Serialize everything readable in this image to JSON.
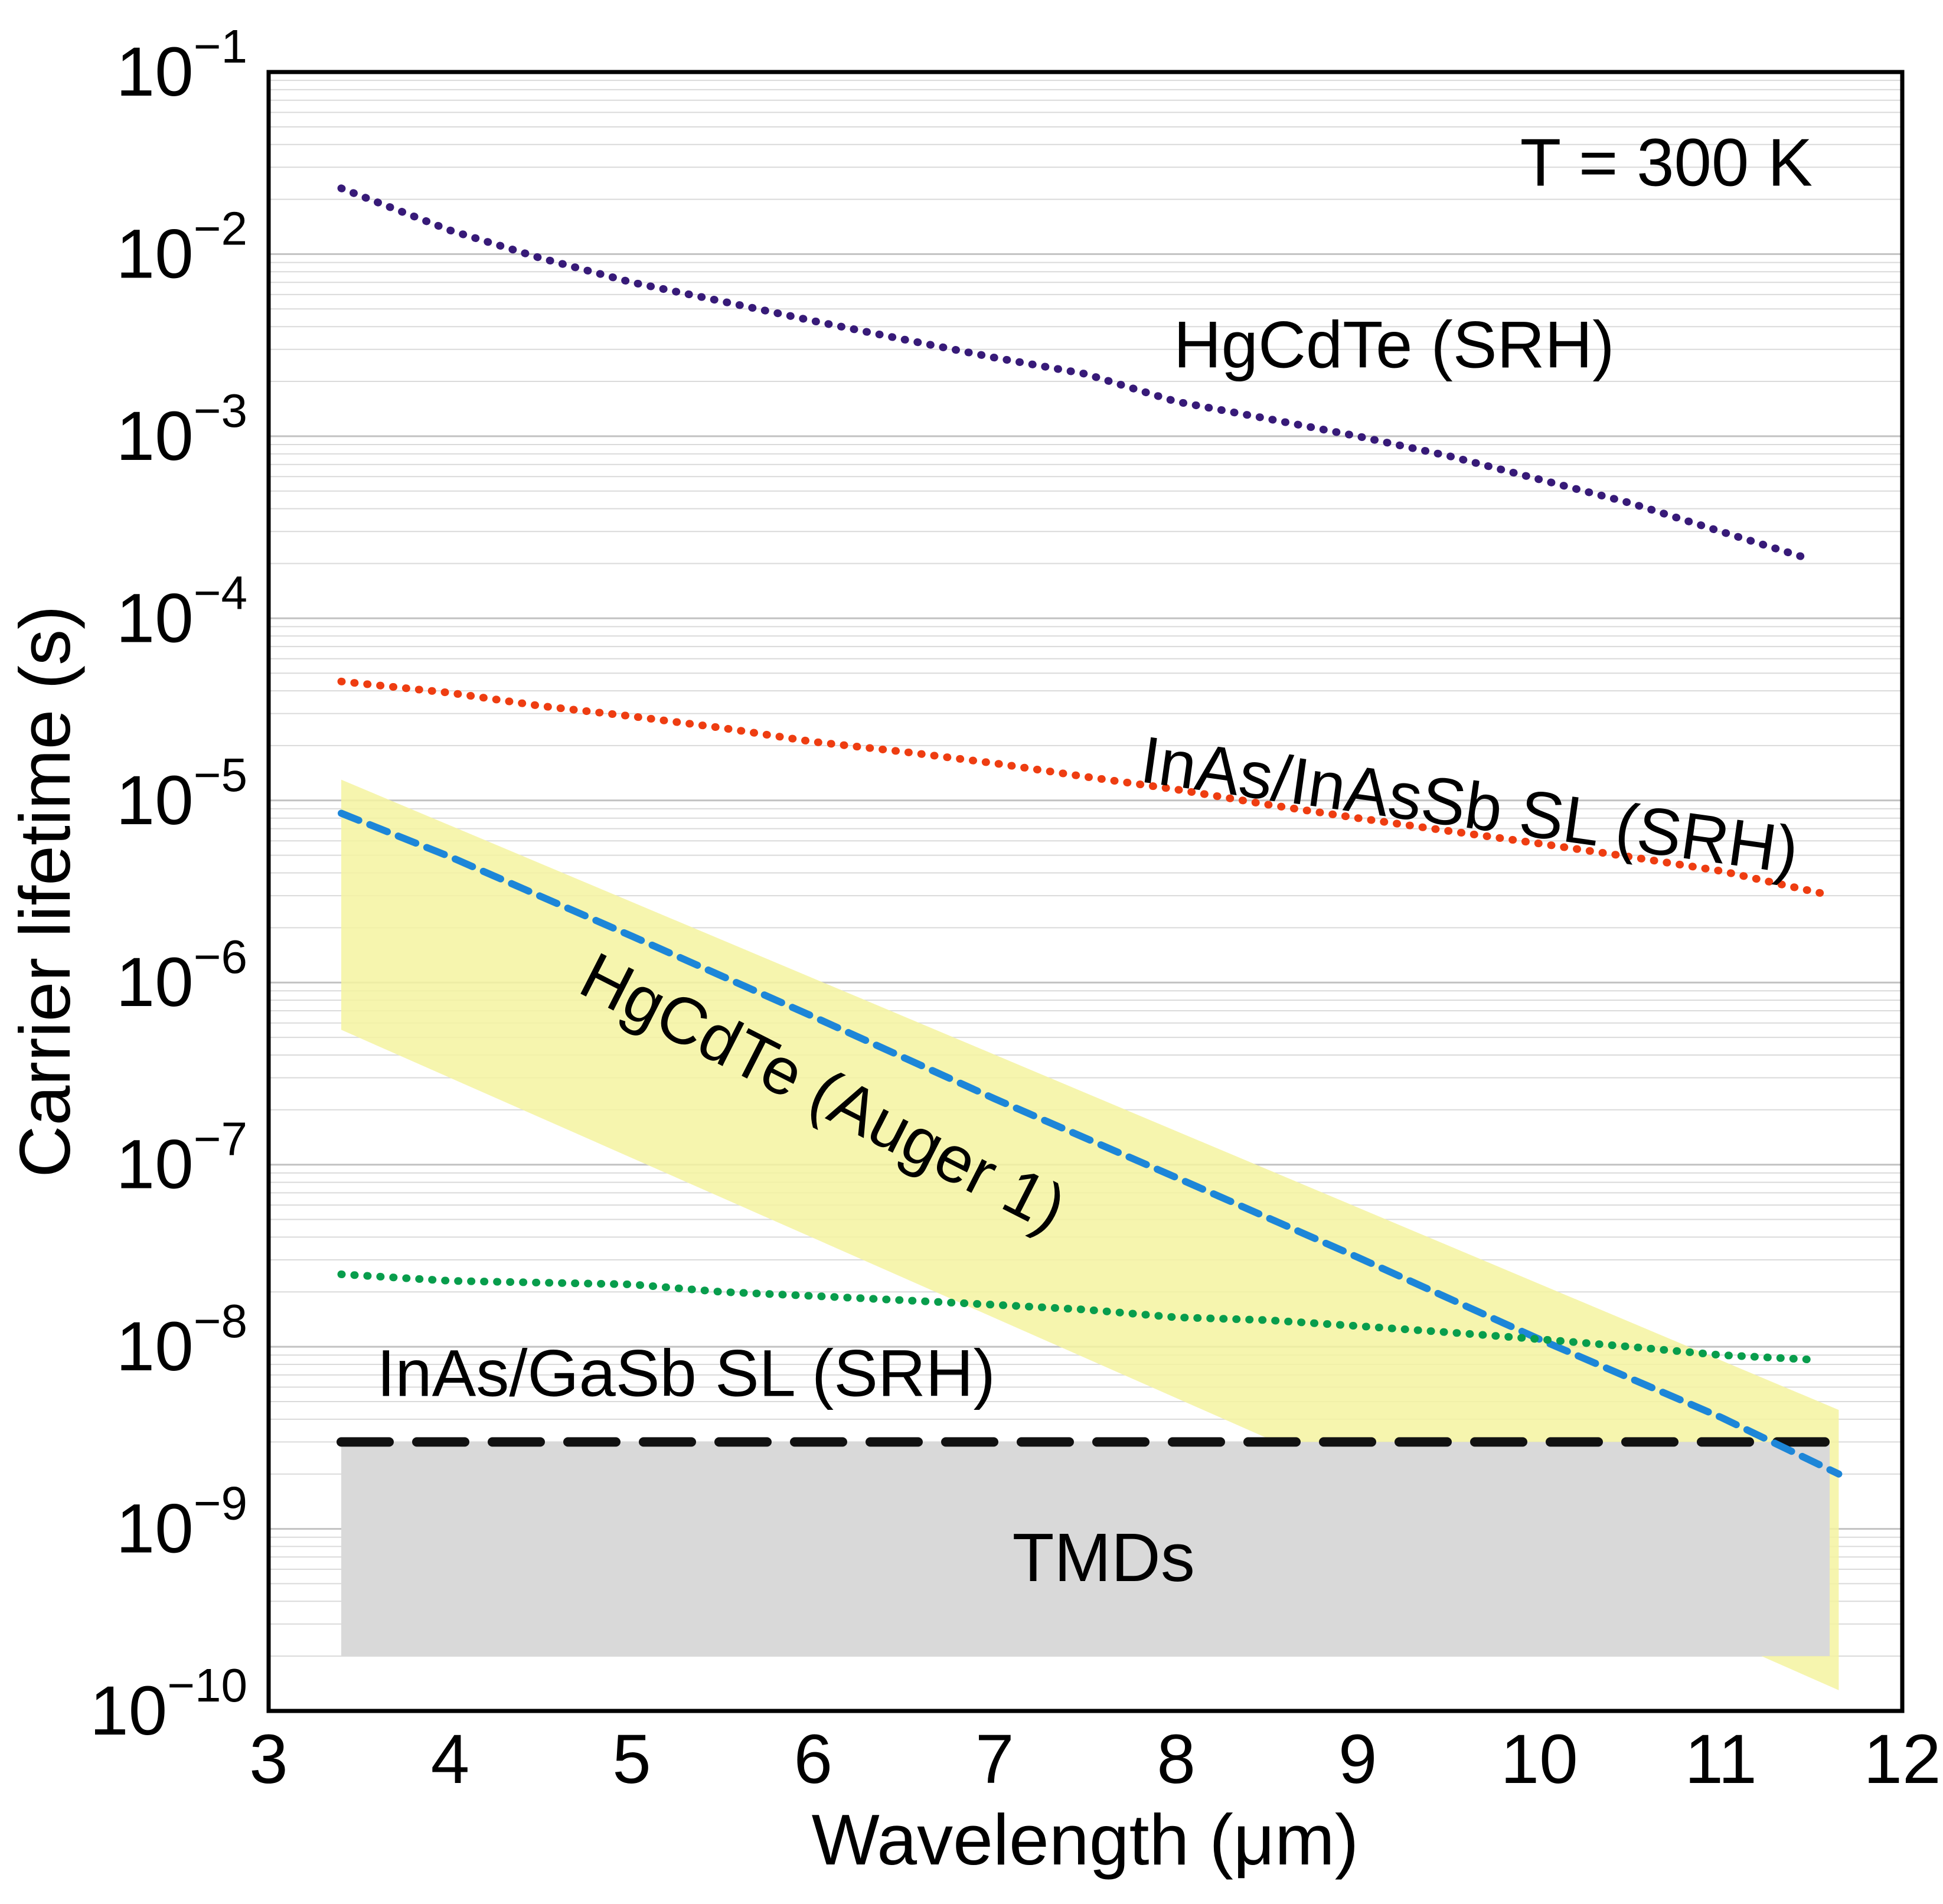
{
  "annotation_temperature": "T = 300 K",
  "axes": {
    "x": {
      "label": "Wavelength (μm)",
      "min": 3,
      "max": 12,
      "ticks": [
        3,
        4,
        5,
        6,
        7,
        8,
        9,
        10,
        11,
        12
      ]
    },
    "y": {
      "label": "Carrier lifetime (s)",
      "log_min_exp": -10,
      "log_max_exp": -1,
      "tick_base": "10",
      "tick_exponents": [
        -1,
        -2,
        -3,
        -4,
        -5,
        -6,
        -7,
        -8,
        -9,
        -10
      ]
    }
  },
  "chart_data": {
    "type": "line",
    "title": "",
    "xlabel": "Wavelength (μm)",
    "ylabel": "Carrier lifetime (s)",
    "xlim": [
      3,
      12
    ],
    "ylim": [
      1e-10,
      0.1
    ],
    "yscale": "log",
    "grid": "horizontal-minor-log",
    "bands": [
      {
        "id": "hgcdte-auger-uncertainty-band",
        "color": "#f5f3a0",
        "opacity": 0.85,
        "polygon": [
          [
            3.4,
            1.3e-05
          ],
          [
            11.65,
            4.5e-09
          ],
          [
            11.65,
            1.3e-10
          ],
          [
            3.4,
            5.5e-07
          ]
        ]
      },
      {
        "id": "tmds-region",
        "color": "#d9d9d9",
        "opacity": 1.0,
        "polygon": [
          [
            3.4,
            3e-09
          ],
          [
            11.6,
            3e-09
          ],
          [
            11.6,
            2e-10
          ],
          [
            3.4,
            2e-10
          ]
        ]
      }
    ],
    "series": [
      {
        "id": "hgcdte-srh",
        "name": "HgCdTe (SRH)",
        "color": "#371a78",
        "style": "dotted",
        "width": 13,
        "x": [
          3.4,
          4,
          4.5,
          5,
          5.5,
          6,
          6.5,
          7,
          7.5,
          8,
          8.5,
          9,
          9.5,
          10,
          10.5,
          11,
          11.5
        ],
        "y": [
          0.023,
          0.0135,
          0.0095,
          0.007,
          0.0055,
          0.0043,
          0.0034,
          0.0027,
          0.0022,
          0.00155,
          0.00125,
          0.001,
          0.00078,
          0.00058,
          0.00043,
          0.0003,
          0.00021
        ]
      },
      {
        "id": "inas-inassb-sl-srh",
        "name": "InAs/InAsSb SL (SRH)",
        "color": "#ee3d11",
        "style": "dotted",
        "width": 13,
        "x": [
          3.4,
          4,
          4.5,
          5,
          5.5,
          6,
          6.5,
          7,
          7.5,
          8,
          8.5,
          9,
          9.5,
          10,
          10.5,
          11,
          11.55
        ],
        "y": [
          4.5e-05,
          3.9e-05,
          3.3e-05,
          2.9e-05,
          2.5e-05,
          2.1e-05,
          1.85e-05,
          1.6e-05,
          1.35e-05,
          1.15e-05,
          9.5e-06,
          8e-06,
          6.8e-06,
          5.8e-06,
          4.9e-06,
          4.1e-06,
          3.1e-06
        ]
      },
      {
        "id": "tmds-upper-bound",
        "name": "TMDs upper bound",
        "color": "#111111",
        "style": "long-dash",
        "width": 16,
        "x": [
          3.4,
          11.6
        ],
        "y": [
          3e-09,
          3e-09
        ]
      },
      {
        "id": "hgcdte-auger1",
        "name": "HgCdTe (Auger 1)",
        "color": "#1d86d8",
        "style": "dashed",
        "width": 12,
        "x": [
          3.4,
          4,
          5,
          6,
          7,
          8,
          9,
          10,
          11,
          11.65
        ],
        "y": [
          8.5e-06,
          4.9e-06,
          1.8e-06,
          6.5e-07,
          2.3e-07,
          8.5e-08,
          3.1e-08,
          1.1e-08,
          4.1e-09,
          2e-09
        ]
      },
      {
        "id": "inas-gasb-sl-srh",
        "name": "InAs/GaSb SL (SRH)",
        "color": "#089d4c",
        "style": "dotted",
        "width": 13,
        "x": [
          3.4,
          4,
          4.5,
          5,
          5.5,
          6,
          6.5,
          7,
          7.5,
          8,
          8.5,
          9,
          9.5,
          10,
          10.5,
          11,
          11.5
        ],
        "y": [
          2.5e-08,
          2.3e-08,
          2.25e-08,
          2.2e-08,
          2e-08,
          1.9e-08,
          1.8e-08,
          1.7e-08,
          1.6e-08,
          1.45e-08,
          1.4e-08,
          1.3e-08,
          1.2e-08,
          1.1e-08,
          1e-08,
          9e-09,
          8.5e-09
        ]
      }
    ],
    "annotations": [
      {
        "id": "temperature-label",
        "text": "T = 300 K",
        "x": 10.7,
        "y": 0.032,
        "color": "#000000",
        "rotate": 0,
        "size": 114
      },
      {
        "id": "label-hgcdte-srh",
        "text": "HgCdTe (SRH)",
        "x": 9.2,
        "y": 0.0032,
        "color": "#371a78",
        "rotate": 0,
        "size": 112
      },
      {
        "id": "label-inas-inassb-sl-srh",
        "text": "InAs/InAsSb SL (SRH)",
        "x": 9.6,
        "y": 9.5e-06,
        "color": "#ee3d11",
        "rotate": 8,
        "size": 112
      },
      {
        "id": "label-hgcdte-auger1",
        "text": "HgCdTe (Auger 1)",
        "x": 6.0,
        "y": 2.6e-07,
        "color": "#1d86d8",
        "rotate": 27,
        "size": 112
      },
      {
        "id": "label-inas-gasb-sl-srh",
        "text": "InAs/GaSb SL (SRH)",
        "x": 5.3,
        "y": 7.2e-09,
        "color": "#089d4c",
        "rotate": 0,
        "size": 112
      },
      {
        "id": "label-tmds",
        "text": "TMDs",
        "x": 7.6,
        "y": 7e-10,
        "color": "#1a1a1a",
        "rotate": 0,
        "size": 116
      }
    ],
    "style_colors": {
      "grid_minor": "#dadada",
      "grid_decade": "#c2c2c2",
      "frame": "#000000"
    }
  }
}
